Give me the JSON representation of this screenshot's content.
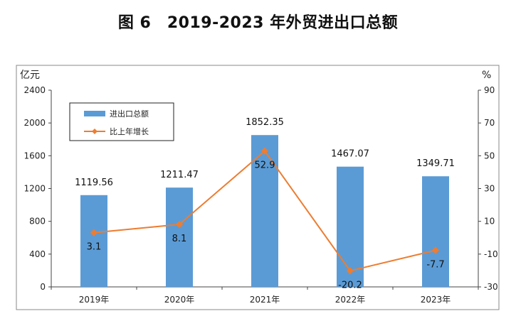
{
  "title": "图 6　2019-2023 年外贸进出口总额",
  "chart_data": {
    "type": "bar",
    "categories": [
      "2019年",
      "2020年",
      "2021年",
      "2022年",
      "2023年"
    ],
    "series": [
      {
        "name": "进出口总额",
        "type": "bar",
        "axis": "left",
        "values": [
          1119.56,
          1211.47,
          1852.35,
          1467.07,
          1349.71
        ],
        "labels": [
          "1119.56",
          "1211.47",
          "1852.35",
          "1467.07",
          "1349.71"
        ]
      },
      {
        "name": "比上年增长",
        "type": "line",
        "axis": "right",
        "values": [
          3.1,
          8.1,
          52.9,
          -20.2,
          -7.7
        ],
        "labels": [
          "3.1",
          "8.1",
          "52.9",
          "-20.2",
          "-7.7"
        ]
      }
    ],
    "y_left": {
      "unit": "亿元",
      "ylim": [
        0,
        2400
      ],
      "ticks": [
        0,
        400,
        800,
        1200,
        1600,
        2000,
        2400
      ]
    },
    "y_right": {
      "unit": "%",
      "ylim": [
        -30,
        90
      ],
      "ticks": [
        -30,
        -10,
        10,
        30,
        50,
        70,
        90
      ]
    },
    "colors": {
      "bar": "#5B9BD5",
      "line": "#ED7D31"
    },
    "legend": "top-left",
    "grid": false
  }
}
